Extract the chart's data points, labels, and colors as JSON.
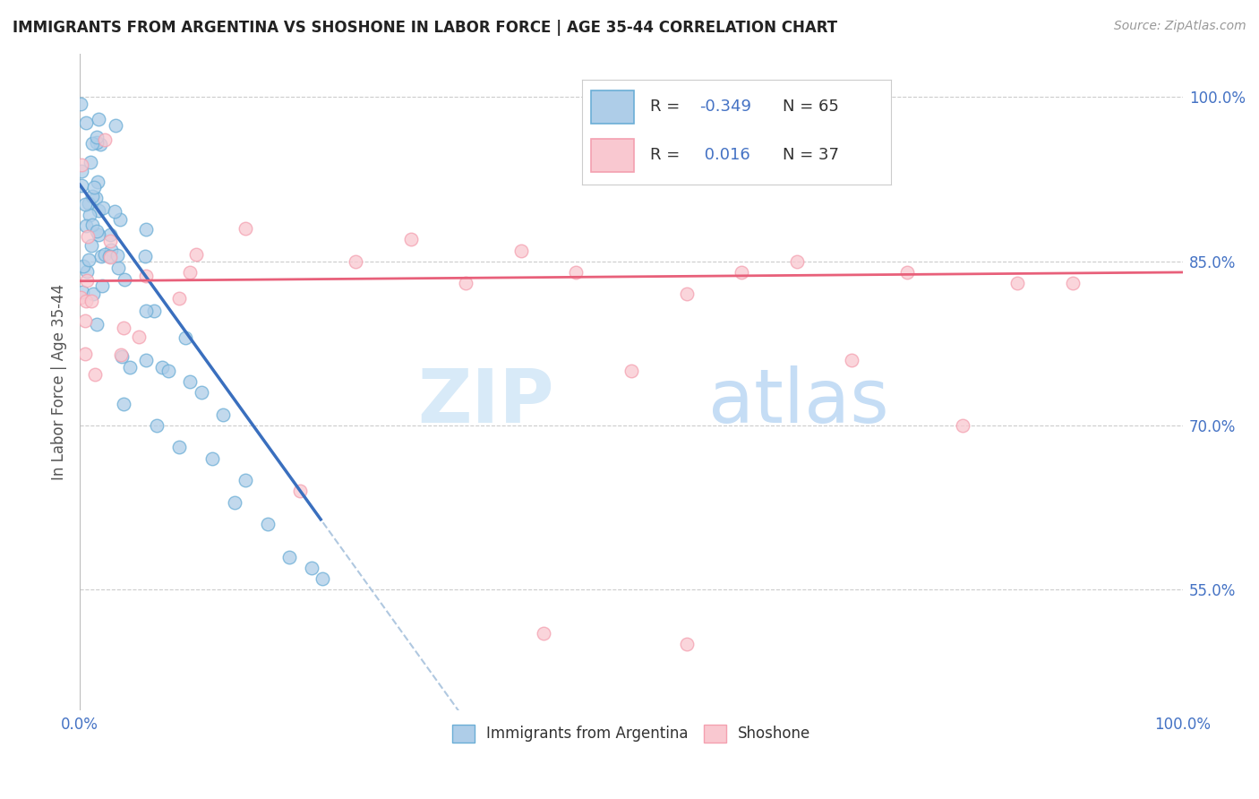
{
  "title": "IMMIGRANTS FROM ARGENTINA VS SHOSHONE IN LABOR FORCE | AGE 35-44 CORRELATION CHART",
  "source": "Source: ZipAtlas.com",
  "ylabel": "In Labor Force | Age 35-44",
  "xlim": [
    0.0,
    1.0
  ],
  "ylim": [
    0.44,
    1.04
  ],
  "ytick_values": [
    0.55,
    0.7,
    0.85,
    1.0
  ],
  "color_argentina": "#6baed6",
  "color_shoshone": "#f4a0b0",
  "color_argentina_fill": "#aecde8",
  "color_shoshone_fill": "#f9c8d0",
  "blue_line_color": "#3a6fbe",
  "pink_line_color": "#e8607a",
  "dashed_line_color": "#b0c8e0",
  "watermark_zip": "ZIP",
  "watermark_atlas": "atlas"
}
